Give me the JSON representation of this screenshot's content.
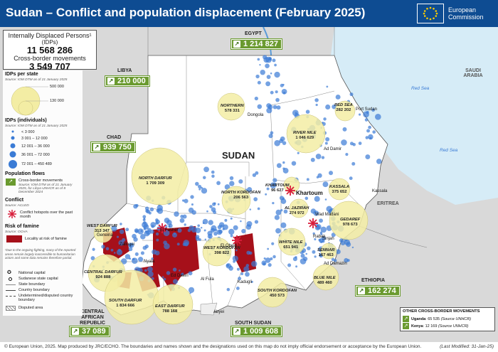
{
  "header": {
    "title": "Sudan – Conflict and population displacement (February 2025)",
    "eu_line1": "European",
    "eu_line2": "Commission",
    "eu_color": "#0e4c92"
  },
  "summary": {
    "idp_label": "Internally Displaced Persons¹",
    "idp_sub": "(IDPs)",
    "idp_value": "11 568 286",
    "cb_label": "Cross-border movements",
    "cb_value": "3 549 707"
  },
  "legend": {
    "state_title": "IDPs per state",
    "state_source": "Source: IOM DTM as of 21 January 2025",
    "state_sizes": [
      "500 000",
      "130 000"
    ],
    "ind_title": "IDPs (individuals)",
    "ind_source": "Source: IOM DTM as of 21 January 2025",
    "ind_classes": [
      "< 3 000",
      "3 001 – 12 000",
      "12 001 – 36 000",
      "36 001 – 72 000",
      "72 001 – 450 489"
    ],
    "flow_title": "Population flows",
    "flow_label": "Cross-border movements",
    "flow_source": "Source: IOM DTM as of 21 January 2025, for Libya UNHCR as of 8 December 2024",
    "conflict_title": "Conflict",
    "conflict_source": "Source: ACLED",
    "conflict_label": "Conflict hotspots over the past month",
    "famine_title": "Risk of famine",
    "famine_source": "Source: OCHA",
    "famine_label": "Locality at risk of famine",
    "footnote": "¹Due to the ongoing fighting, many of the reported areas remain largely inaccessible to humanitarian actors and some data remains therefore partial.",
    "sym_capital": "National capital",
    "sym_state_cap": "Sudanese state capital",
    "sym_state_bnd": "State boundary",
    "sym_country_bnd": "Country boundary",
    "sym_undetermined": "Undetermined/disputed country boundary",
    "sym_disputed": "Disputed area"
  },
  "flows": {
    "egypt": {
      "country": "EGYPT",
      "value": "1 214 827"
    },
    "libya": {
      "country": "LIBYA",
      "value": "210 000"
    },
    "chad": {
      "country": "CHAD",
      "value": "939 750"
    },
    "car": {
      "country": "CENTRAL AFRICAN REPUBLIC",
      "value": "37 089"
    },
    "south_sudan": {
      "country": "SOUTH SUDAN",
      "value": "1 009 608"
    },
    "ethiopia": {
      "country": "ETHIOPIA",
      "value": "162 274"
    }
  },
  "places": {
    "sudan": "SUDAN",
    "eritrea": "ERITREA",
    "saudi": "SAUDI ARABIA",
    "red_sea_1": "Red Sea",
    "red_sea_2": "Red Sea",
    "cities": [
      "Dongola",
      "Port Sudan",
      "Ad Damir",
      "Kassala",
      "Khartoum",
      "Wad Madani",
      "Sinjah",
      "Ad Damazin",
      "El Fasher",
      "Geneina",
      "Zalingei",
      "Nyala",
      "Ed Daein",
      "Al Fula",
      "Kadugli",
      "Abyei",
      "El Obeid",
      "Rabak"
    ]
  },
  "states": [
    {
      "name": "NORTHERN",
      "value": "578 331"
    },
    {
      "name": "RED SEA",
      "value": "282 202"
    },
    {
      "name": "RIVER NILE",
      "value": "1 046 629"
    },
    {
      "name": "NORTH DARFUR",
      "value": "1 709 309"
    },
    {
      "name": "KHARTOUM",
      "value": "96 627"
    },
    {
      "name": "KASSALA",
      "value": "375 652"
    },
    {
      "name": "NORTH KORDOFAN",
      "value": "206 563"
    },
    {
      "name": "AL JAZIRAH",
      "value": "274 972"
    },
    {
      "name": "GEDAREF",
      "value": "978 673"
    },
    {
      "name": "WEST DARFUR",
      "value": "313 347"
    },
    {
      "name": "WHITE NILE",
      "value": "651 941"
    },
    {
      "name": "SENNAR",
      "value": "167 463"
    },
    {
      "name": "WEST KORDOFAN",
      "value": "398 822"
    },
    {
      "name": "CENTRAL DARFUR",
      "value": "924 888"
    },
    {
      "name": "BLUE NILE",
      "value": "489 460"
    },
    {
      "name": "SOUTH DARFUR",
      "value": "1 834 666"
    },
    {
      "name": "EAST DARFUR",
      "value": "788 168"
    },
    {
      "name": "SOUTH KORDOFAN",
      "value": "450 573"
    }
  ],
  "other_movements": {
    "title": "OTHER CROSS-BORDER MOVEMENTS",
    "rows": [
      {
        "country": "Uganda",
        "value": "65 535",
        "source": "(Source UNHCR)"
      },
      {
        "country": "Kenya",
        "value": "12 169",
        "source": "(Source UNHCR)"
      }
    ]
  },
  "footer": {
    "copyright": "© European Union, 2025. Map produced by JRC/ECHO. The boundaries and names shown and the designations used on this map do not imply official endorsement or acceptance by the European Union.",
    "modified": "(Last Modified: 31-Jan-25)"
  },
  "colors": {
    "sudan_land": "#ffffff",
    "neighbour_land": "#d9d9d9",
    "sea": "#d6ecf7",
    "state_bubble": "#f3eda4",
    "idp_dot": "#3a7bd5",
    "famine": "#a6101a",
    "conflict": "#d81e3c",
    "flow_green": "#6a9a2f"
  }
}
